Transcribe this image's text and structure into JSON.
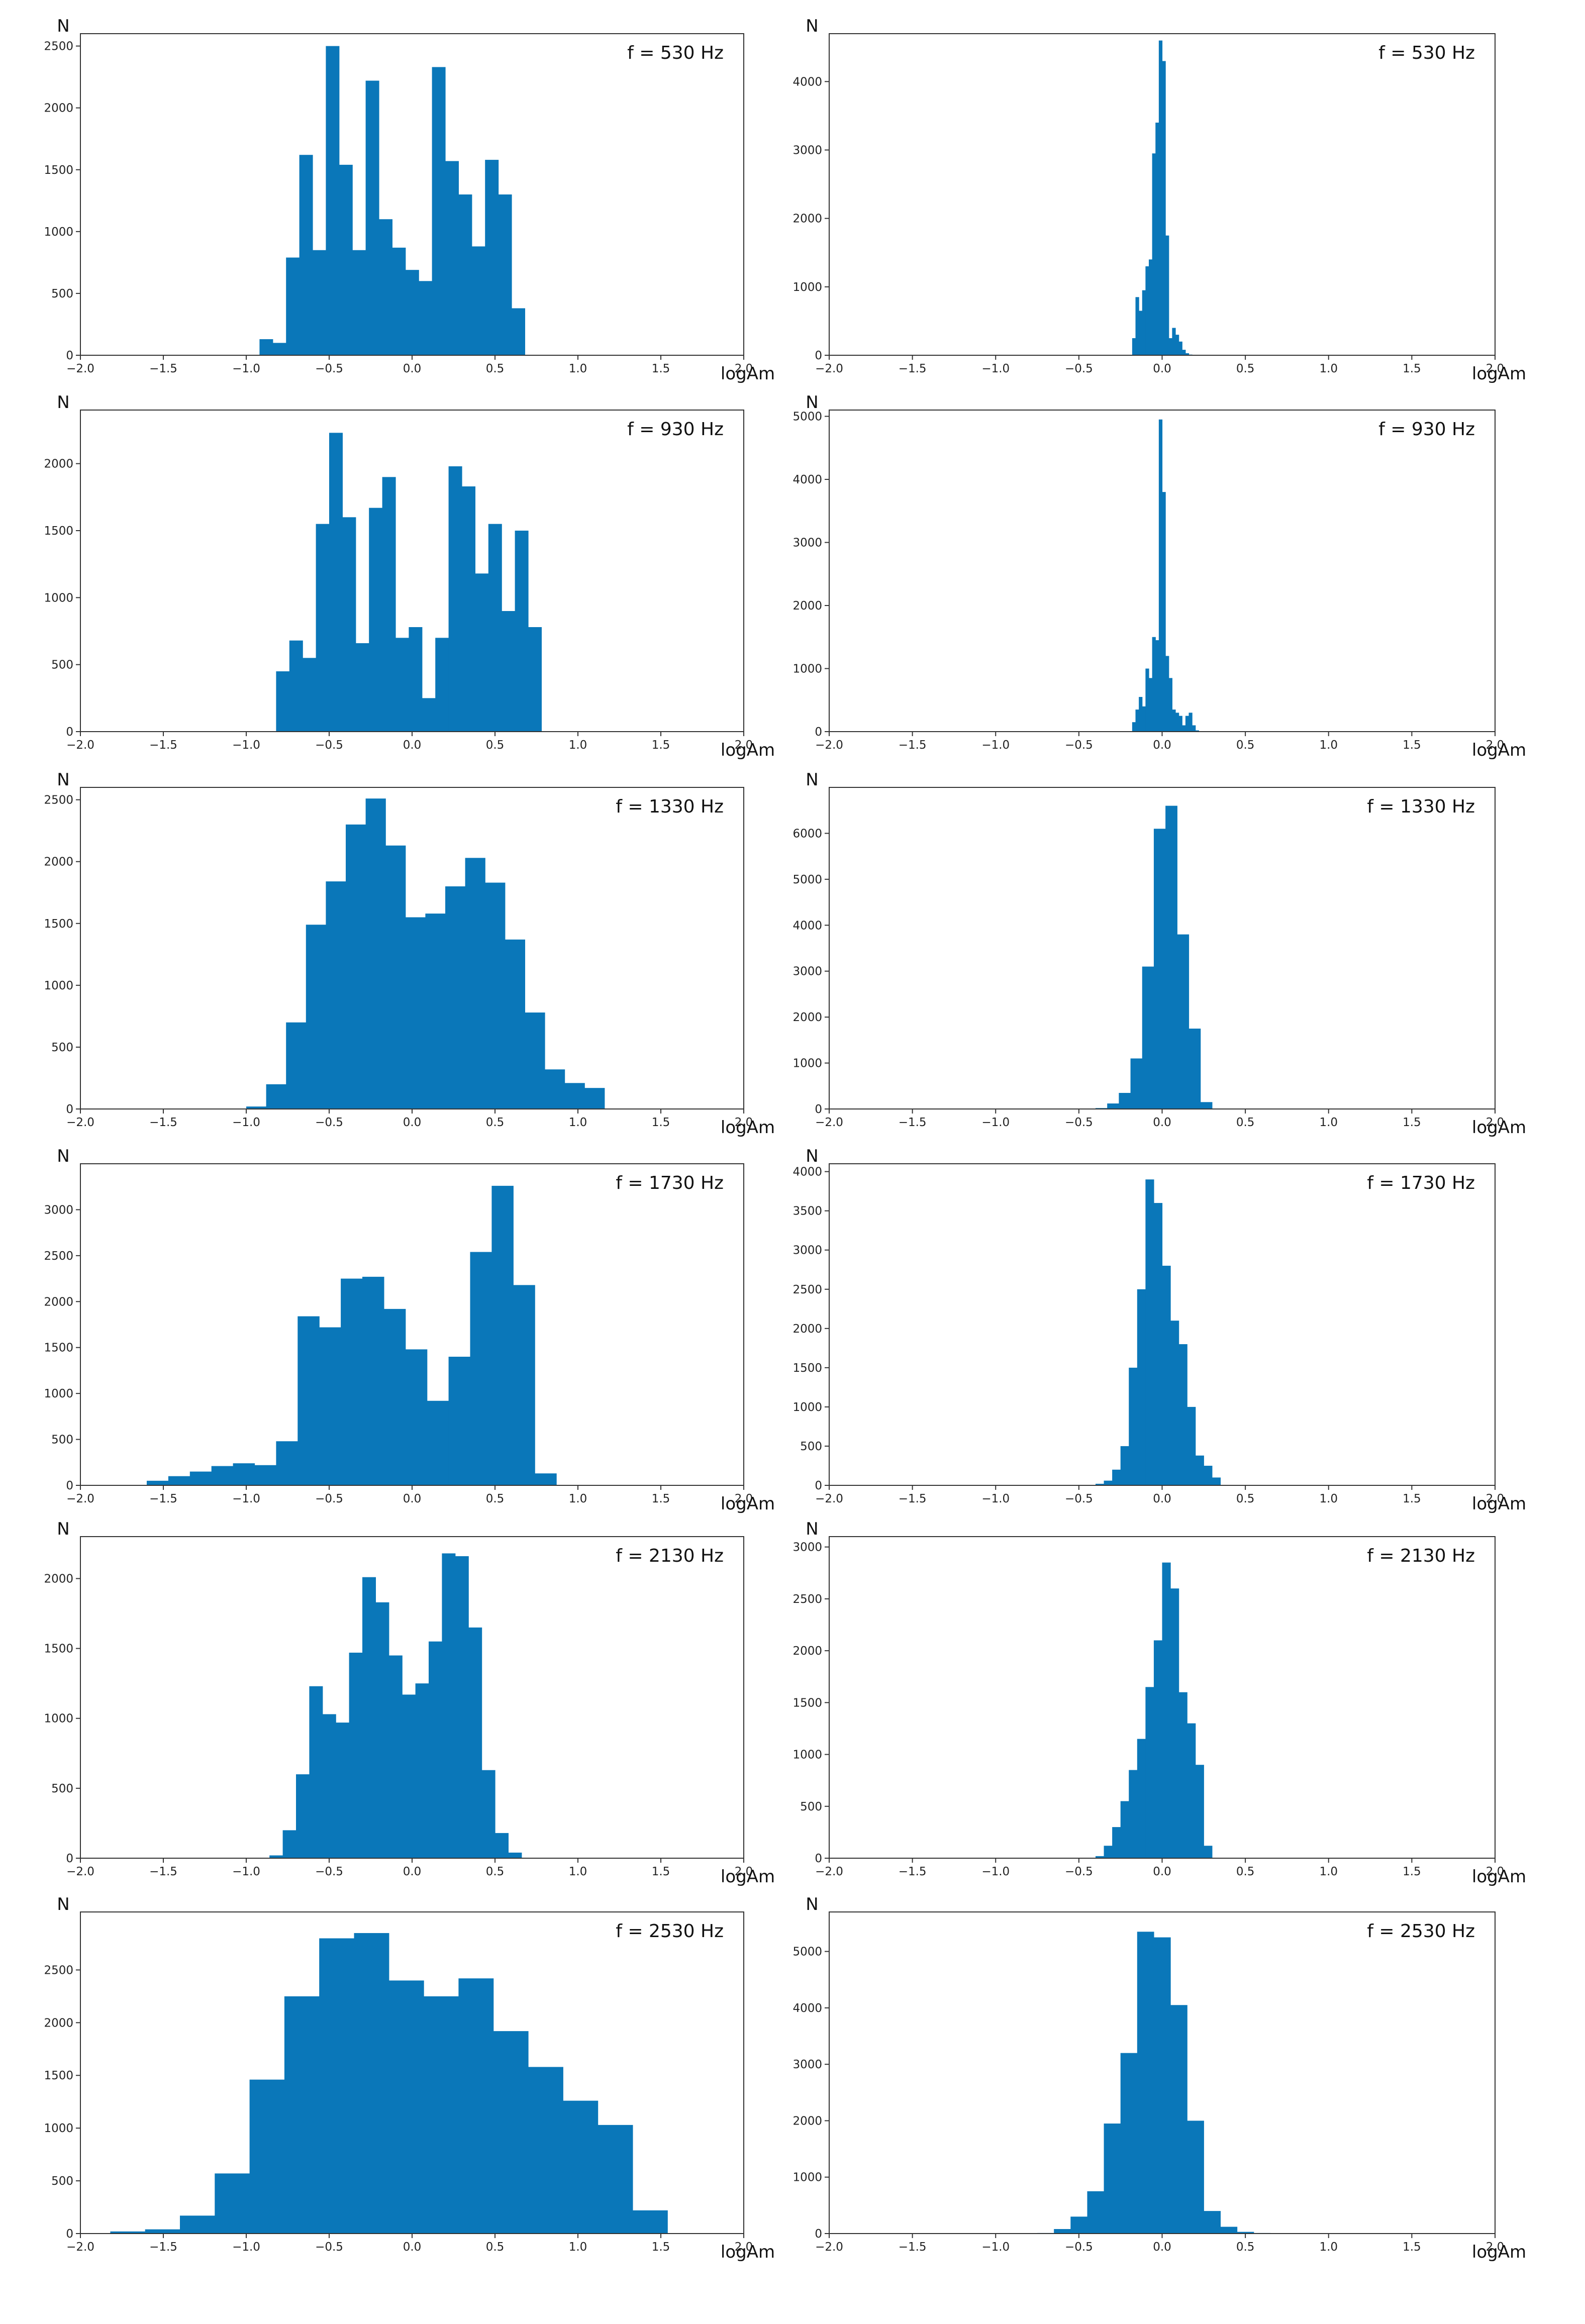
{
  "chart_data": [
    {
      "type": "bar",
      "annotation": "f = 530 Hz",
      "ylabel": "N",
      "xlabel": "logAm",
      "xlim": [
        -2.0,
        2.0
      ],
      "ylim": [
        0,
        2600
      ],
      "xticks": [
        "−2.0",
        "−1.5",
        "−1.0",
        "−0.5",
        "0.0",
        "0.5",
        "1.0",
        "1.5",
        "2.0"
      ],
      "yticks": [
        0,
        500,
        1000,
        1500,
        2000,
        2500
      ],
      "bin_edges": [
        -0.92,
        -0.84,
        -0.76,
        -0.68,
        -0.6,
        -0.52,
        -0.44,
        -0.36,
        -0.28,
        -0.2,
        -0.12,
        -0.04,
        0.04,
        0.12,
        0.2,
        0.28,
        0.36,
        0.44,
        0.52,
        0.6,
        0.68,
        0.76,
        0.84
      ],
      "values": [
        130,
        100,
        790,
        1620,
        850,
        2500,
        1540,
        850,
        2220,
        1100,
        870,
        690,
        600,
        2330,
        1570,
        1300,
        880,
        1580,
        1300,
        380,
        0,
        0
      ]
    },
    {
      "type": "bar",
      "annotation": "f = 530 Hz",
      "xlabel": "logAm",
      "ylabel": "N",
      "xlim": [
        -2.0,
        2.0
      ],
      "ylim": [
        0,
        4700
      ],
      "xticks": [
        "−2.0",
        "−1.5",
        "−1.0",
        "−0.5",
        "0.0",
        "0.5",
        "1.0",
        "1.5",
        "2.0"
      ],
      "yticks": [
        0,
        1000,
        2000,
        3000,
        4000
      ],
      "bin_edges": [
        -0.18,
        -0.16,
        -0.14,
        -0.12,
        -0.1,
        -0.08,
        -0.06,
        -0.04,
        -0.02,
        0.0,
        0.02,
        0.04,
        0.06,
        0.08,
        0.1,
        0.12,
        0.14,
        0.16,
        0.18,
        0.2,
        0.22
      ],
      "values": [
        250,
        850,
        650,
        950,
        1300,
        1400,
        2950,
        3400,
        4600,
        4300,
        1750,
        250,
        400,
        300,
        200,
        80,
        30,
        10,
        5,
        0
      ]
    },
    {
      "type": "bar",
      "annotation": "f = 930 Hz",
      "ylabel": "N",
      "xlabel": "logAm",
      "xlim": [
        -2.0,
        2.0
      ],
      "ylim": [
        0,
        2400
      ],
      "xticks": [
        "−2.0",
        "−1.5",
        "−1.0",
        "−0.5",
        "0.0",
        "0.5",
        "1.0",
        "1.5",
        "2.0"
      ],
      "yticks": [
        0,
        500,
        1000,
        1500,
        2000
      ],
      "bin_edges": [
        -0.82,
        -0.74,
        -0.66,
        -0.58,
        -0.5,
        -0.42,
        -0.34,
        -0.26,
        -0.18,
        -0.1,
        -0.02,
        0.06,
        0.14,
        0.22,
        0.3,
        0.38,
        0.46,
        0.54,
        0.62,
        0.7,
        0.78
      ],
      "values": [
        450,
        680,
        550,
        1550,
        2230,
        1600,
        660,
        1670,
        1900,
        700,
        780,
        250,
        700,
        1980,
        1830,
        1180,
        1550,
        900,
        1500,
        780
      ]
    },
    {
      "type": "bar",
      "annotation": "f = 930 Hz",
      "xlabel": "logAm",
      "ylabel": "N",
      "xlim": [
        -2.0,
        2.0
      ],
      "ylim": [
        0,
        5100
      ],
      "xticks": [
        "−2.0",
        "−1.5",
        "−1.0",
        "−0.5",
        "0.0",
        "0.5",
        "1.0",
        "1.5",
        "2.0"
      ],
      "yticks": [
        0,
        1000,
        2000,
        3000,
        4000,
        5000
      ],
      "bin_edges": [
        -0.18,
        -0.16,
        -0.14,
        -0.12,
        -0.1,
        -0.08,
        -0.06,
        -0.04,
        -0.02,
        0.0,
        0.02,
        0.04,
        0.06,
        0.08,
        0.1,
        0.12,
        0.14,
        0.16,
        0.18,
        0.2,
        0.22
      ],
      "values": [
        150,
        350,
        550,
        400,
        1000,
        850,
        1500,
        1450,
        4950,
        3800,
        1200,
        850,
        350,
        300,
        250,
        100,
        250,
        300,
        100,
        20
      ]
    },
    {
      "type": "bar",
      "annotation": "f = 1330 Hz",
      "ylabel": "N",
      "xlabel": "logAm",
      "xlim": [
        -2.0,
        2.0
      ],
      "ylim": [
        0,
        2600
      ],
      "xticks": [
        "−2.0",
        "−1.5",
        "−1.0",
        "−0.5",
        "0.0",
        "0.5",
        "1.0",
        "1.5",
        "2.0"
      ],
      "yticks": [
        0,
        500,
        1000,
        1500,
        2000,
        2500
      ],
      "bin_edges": [
        -1.0,
        -0.88,
        -0.76,
        -0.64,
        -0.52,
        -0.4,
        -0.28,
        -0.16,
        -0.04,
        0.08,
        0.2,
        0.32,
        0.44,
        0.56,
        0.68,
        0.8,
        0.92,
        1.04,
        1.16
      ],
      "values": [
        20,
        200,
        700,
        1490,
        1840,
        2300,
        2510,
        2130,
        1550,
        1580,
        1800,
        2030,
        1830,
        1370,
        780,
        320,
        210,
        170,
        230
      ]
    },
    {
      "type": "bar",
      "annotation": "f = 1330 Hz",
      "xlabel": "logAm",
      "ylabel": "N",
      "xlim": [
        -2.0,
        2.0
      ],
      "ylim": [
        0,
        7000
      ],
      "xticks": [
        "−2.0",
        "−1.5",
        "−1.0",
        "−0.5",
        "0.0",
        "0.5",
        "1.0",
        "1.5",
        "2.0"
      ],
      "yticks": [
        0,
        1000,
        2000,
        3000,
        4000,
        5000,
        6000
      ],
      "bin_edges": [
        -0.4,
        -0.33,
        -0.26,
        -0.19,
        -0.12,
        -0.05,
        0.02,
        0.09,
        0.16,
        0.23,
        0.3
      ],
      "values": [
        20,
        120,
        350,
        1100,
        3100,
        6100,
        6600,
        3800,
        1750,
        150
      ]
    },
    {
      "type": "bar",
      "annotation": "f = 1730 Hz",
      "ylabel": "N",
      "xlabel": "logAm",
      "xlim": [
        -2.0,
        2.0
      ],
      "ylim": [
        0,
        3500
      ],
      "xticks": [
        "−2.0",
        "−1.5",
        "−1.0",
        "−0.5",
        "0.0",
        "0.5",
        "1.0",
        "1.5",
        "2.0"
      ],
      "yticks": [
        0,
        500,
        1000,
        1500,
        2000,
        2500,
        3000
      ],
      "bin_edges": [
        -1.6,
        -1.47,
        -1.34,
        -1.21,
        -1.08,
        -0.95,
        -0.82,
        -0.69,
        -0.56,
        -0.43,
        -0.3,
        -0.17,
        -0.04,
        0.09,
        0.22,
        0.35,
        0.48,
        0.61,
        0.74,
        0.87
      ],
      "values": [
        50,
        100,
        150,
        210,
        240,
        220,
        480,
        1840,
        1720,
        2250,
        2270,
        1920,
        1480,
        920,
        1400,
        2540,
        3260,
        2180,
        130
      ]
    },
    {
      "type": "bar",
      "annotation": "f = 1730 Hz",
      "xlabel": "logAm",
      "ylabel": "N",
      "xlim": [
        -2.0,
        2.0
      ],
      "ylim": [
        0,
        4100
      ],
      "xticks": [
        "−2.0",
        "−1.5",
        "−1.0",
        "−0.5",
        "0.0",
        "0.5",
        "1.0",
        "1.5",
        "2.0"
      ],
      "yticks": [
        0,
        500,
        1000,
        1500,
        2000,
        2500,
        3000,
        3500,
        4000
      ],
      "bin_edges": [
        -0.4,
        -0.35,
        -0.3,
        -0.25,
        -0.2,
        -0.15,
        -0.1,
        -0.05,
        0.0,
        0.05,
        0.1,
        0.15,
        0.2,
        0.25,
        0.3,
        0.35
      ],
      "values": [
        20,
        60,
        200,
        500,
        1500,
        2500,
        3900,
        3600,
        2800,
        2100,
        1800,
        1000,
        380,
        250,
        100
      ]
    },
    {
      "type": "bar",
      "annotation": "f = 2130 Hz",
      "ylabel": "N",
      "xlabel": "logAm",
      "xlim": [
        -2.0,
        2.0
      ],
      "ylim": [
        0,
        2300
      ],
      "xticks": [
        "−2.0",
        "−1.5",
        "−1.0",
        "−0.5",
        "0.0",
        "0.5",
        "1.0",
        "1.5",
        "2.0"
      ],
      "yticks": [
        0,
        500,
        1000,
        1500,
        2000
      ],
      "bin_edges": [
        -0.86,
        -0.78,
        -0.7,
        -0.62,
        -0.54,
        -0.46,
        -0.38,
        -0.3,
        -0.22,
        -0.14,
        -0.06,
        0.02,
        0.1,
        0.18,
        0.26,
        0.34,
        0.42,
        0.5,
        0.58,
        0.66,
        0.74
      ],
      "values": [
        20,
        200,
        600,
        1230,
        1030,
        970,
        1470,
        2010,
        1830,
        1450,
        1170,
        1250,
        1550,
        2180,
        2160,
        1650,
        630,
        180,
        40,
        0
      ]
    },
    {
      "type": "bar",
      "annotation": "f = 2130 Hz",
      "xlabel": "logAm",
      "ylabel": "N",
      "xlim": [
        -2.0,
        2.0
      ],
      "ylim": [
        0,
        3100
      ],
      "xticks": [
        "−2.0",
        "−1.5",
        "−1.0",
        "−0.5",
        "0.0",
        "0.5",
        "1.0",
        "1.5",
        "2.0"
      ],
      "yticks": [
        0,
        500,
        1000,
        1500,
        2000,
        2500,
        3000
      ],
      "bin_edges": [
        -0.4,
        -0.35,
        -0.3,
        -0.25,
        -0.2,
        -0.15,
        -0.1,
        -0.05,
        0.0,
        0.05,
        0.1,
        0.15,
        0.2,
        0.25,
        0.3
      ],
      "values": [
        20,
        120,
        300,
        550,
        850,
        1150,
        1650,
        2100,
        2850,
        2600,
        1600,
        1300,
        900,
        120
      ]
    },
    {
      "type": "bar",
      "annotation": "f = 2530 Hz",
      "ylabel": "N",
      "xlabel": "logAm",
      "xlim": [
        -2.0,
        2.0
      ],
      "ylim": [
        0,
        3050
      ],
      "xticks": [
        "−2.0",
        "−1.5",
        "−1.0",
        "−0.5",
        "0.0",
        "0.5",
        "1.0",
        "1.5",
        "2.0"
      ],
      "yticks": [
        0,
        500,
        1000,
        1500,
        2000,
        2500
      ],
      "bin_edges": [
        -1.82,
        -1.61,
        -1.4,
        -1.19,
        -0.98,
        -0.77,
        -0.56,
        -0.35,
        -0.14,
        0.07,
        0.28,
        0.49,
        0.7,
        0.91,
        1.12,
        1.33,
        1.54
      ],
      "values": [
        20,
        40,
        170,
        570,
        1460,
        2250,
        2800,
        2850,
        2400,
        2250,
        2420,
        1920,
        1580,
        1260,
        1030,
        220
      ]
    },
    {
      "type": "bar",
      "annotation": "f = 2530 Hz",
      "xlabel": "logAm",
      "ylabel": "N",
      "xlim": [
        -2.0,
        2.0
      ],
      "ylim": [
        0,
        5700
      ],
      "xticks": [
        "−2.0",
        "−1.5",
        "−1.0",
        "−0.5",
        "0.0",
        "0.5",
        "1.0",
        "1.5",
        "2.0"
      ],
      "yticks": [
        0,
        1000,
        2000,
        3000,
        4000,
        5000
      ],
      "bin_edges": [
        -0.75,
        -0.65,
        -0.55,
        -0.45,
        -0.35,
        -0.25,
        -0.15,
        -0.05,
        0.05,
        0.15,
        0.25,
        0.35,
        0.45,
        0.55,
        0.65,
        0.75
      ],
      "values": [
        10,
        80,
        300,
        750,
        1950,
        3200,
        5350,
        5250,
        4050,
        2000,
        400,
        120,
        30,
        10,
        0
      ]
    }
  ]
}
